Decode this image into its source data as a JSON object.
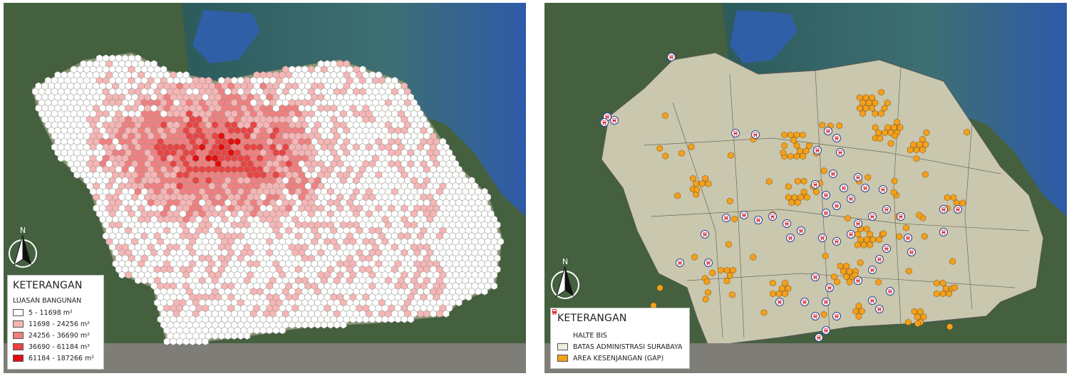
{
  "map_left": {
    "legend": {
      "title": "KETERANGAN",
      "subtitle": "LUASAN BANGUNAN",
      "classes": [
        {
          "label": "5 - 11698 m²",
          "color": "#ffffff"
        },
        {
          "label": "11698 - 24256 m²",
          "color": "#f7b5b5"
        },
        {
          "label": "24256 - 36690 m²",
          "color": "#f17f7f"
        },
        {
          "label": "36690 - 61184 m²",
          "color": "#e94343"
        },
        {
          "label": "61184 - 187266 m²",
          "color": "#e30d0d"
        }
      ]
    },
    "north_label": "N"
  },
  "map_right": {
    "legend": {
      "title": "KETERANGAN",
      "items": [
        {
          "label": "HALTE BIS",
          "symbol": "bus-stop-icon",
          "color": "#d62828"
        },
        {
          "label": "BATAS ADMINISTRASI SURABAYA",
          "color": "#efeedd"
        },
        {
          "label": "AREA KESENJANGAN (GAP)",
          "color": "#f5a01a"
        }
      ]
    },
    "north_label": "N"
  }
}
